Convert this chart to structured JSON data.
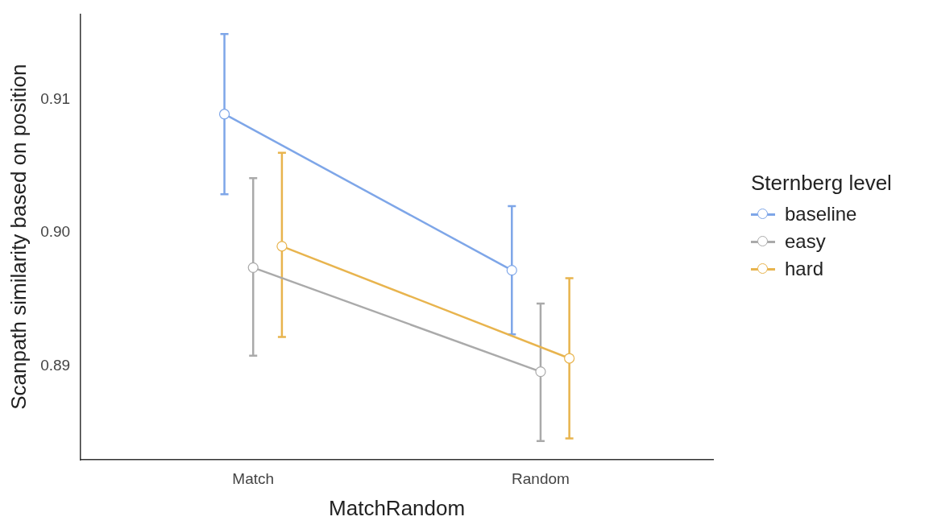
{
  "chart_data": {
    "type": "line",
    "xlabel": "MatchRandom",
    "ylabel": "Scanpath similarity based on position",
    "legend_title": "Sternberg level",
    "legend": "right",
    "marker": "circle",
    "line_style": "solid",
    "categories": [
      "Match",
      "Random"
    ],
    "ylim": [
      0.883,
      0.9164
    ],
    "yticks": [
      {
        "value": 0.89,
        "label": "0.89"
      },
      {
        "value": 0.9,
        "label": "0.90"
      },
      {
        "value": 0.91,
        "label": "0.91"
      }
    ],
    "series": [
      {
        "name": "baseline",
        "color": "#7ea6e8",
        "values": [
          0.9089,
          0.8972
        ],
        "errors": [
          [
            0.9029,
            0.9149
          ],
          [
            0.8924,
            0.902
          ]
        ]
      },
      {
        "name": "easy",
        "color": "#aaaaaa",
        "values": [
          0.8974,
          0.8896
        ],
        "errors": [
          [
            0.8908,
            0.9041
          ],
          [
            0.8844,
            0.8947
          ]
        ]
      },
      {
        "name": "hard",
        "color": "#e8b44e",
        "values": [
          0.899,
          0.8906
        ],
        "errors": [
          [
            0.8922,
            0.906
          ],
          [
            0.8846,
            0.8966
          ]
        ]
      }
    ]
  }
}
